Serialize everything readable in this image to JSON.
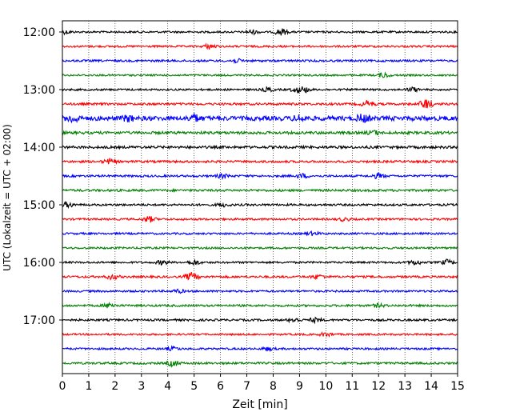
{
  "chart_data": {
    "type": "line",
    "xlabel": "Zeit  [min]",
    "ylabel": "UTC (Lokalzeit = UTC + 02:00)",
    "xlim": [
      0,
      15
    ],
    "x_ticks": [
      "0",
      "1",
      "2",
      "3",
      "4",
      "5",
      "6",
      "7",
      "8",
      "9",
      "10",
      "11",
      "12",
      "13",
      "14",
      "15"
    ],
    "y_ticks": [
      {
        "label": "12:00",
        "row": 0
      },
      {
        "label": "13:00",
        "row": 4
      },
      {
        "label": "14:00",
        "row": 8
      },
      {
        "label": "15:00",
        "row": 12
      },
      {
        "label": "16:00",
        "row": 16
      },
      {
        "label": "17:00",
        "row": 20
      }
    ],
    "grid_x": true,
    "grid_style": "dotted",
    "row_colors": [
      "#000000",
      "#ff0000",
      "#0000ff",
      "#008000"
    ],
    "rows": [
      {
        "time": "12:00",
        "amp": 1.2,
        "events": [
          [
            7.2,
            2.5
          ],
          [
            8.3,
            4
          ],
          [
            0.1,
            2
          ]
        ]
      },
      {
        "time": "12:15",
        "amp": 1.2,
        "events": [
          [
            5.6,
            3
          ]
        ]
      },
      {
        "time": "12:30",
        "amp": 1.3,
        "events": [
          [
            6.6,
            2
          ]
        ]
      },
      {
        "time": "12:45",
        "amp": 1.1,
        "events": [
          [
            12.2,
            3
          ]
        ]
      },
      {
        "time": "13:00",
        "amp": 1.2,
        "events": [
          [
            7.8,
            2.5
          ],
          [
            8.9,
            3
          ],
          [
            9.2,
            3
          ],
          [
            13.3,
            2.5
          ]
        ]
      },
      {
        "time": "13:15",
        "amp": 1.4,
        "events": [
          [
            11.6,
            4
          ],
          [
            13.8,
            6
          ]
        ]
      },
      {
        "time": "13:30",
        "amp": 2.8,
        "events": [
          [
            0.4,
            4
          ],
          [
            2.5,
            3
          ],
          [
            5.0,
            4
          ],
          [
            9.0,
            3
          ],
          [
            11.4,
            4
          ]
        ]
      },
      {
        "time": "13:45",
        "amp": 1.7,
        "events": [
          [
            11.8,
            2.5
          ]
        ]
      },
      {
        "time": "14:00",
        "amp": 1.6,
        "events": []
      },
      {
        "time": "14:15",
        "amp": 1.4,
        "events": [
          [
            1.8,
            3
          ]
        ]
      },
      {
        "time": "14:30",
        "amp": 1.3,
        "events": [
          [
            6.1,
            2.5
          ],
          [
            9.1,
            2.5
          ],
          [
            12.0,
            3
          ]
        ]
      },
      {
        "time": "14:45",
        "amp": 1.4,
        "events": []
      },
      {
        "time": "15:00",
        "amp": 1.3,
        "events": [
          [
            0.2,
            3
          ],
          [
            6.1,
            2
          ]
        ]
      },
      {
        "time": "15:15",
        "amp": 1.2,
        "events": [
          [
            3.3,
            3.5
          ],
          [
            10.7,
            2
          ]
        ]
      },
      {
        "time": "15:30",
        "amp": 1.2,
        "events": [
          [
            9.5,
            2
          ]
        ]
      },
      {
        "time": "15:45",
        "amp": 1.2,
        "events": []
      },
      {
        "time": "16:00",
        "amp": 1.2,
        "events": [
          [
            3.8,
            2.5
          ],
          [
            5.0,
            3
          ],
          [
            13.4,
            3
          ],
          [
            14.6,
            3
          ]
        ]
      },
      {
        "time": "16:15",
        "amp": 1.3,
        "events": [
          [
            1.9,
            3
          ],
          [
            4.9,
            5
          ],
          [
            9.7,
            2.5
          ]
        ]
      },
      {
        "time": "16:30",
        "amp": 1.2,
        "events": [
          [
            4.4,
            2
          ]
        ]
      },
      {
        "time": "16:45",
        "amp": 1.3,
        "events": [
          [
            1.8,
            3
          ],
          [
            12.0,
            2
          ]
        ]
      },
      {
        "time": "17:00",
        "amp": 1.3,
        "events": [
          [
            8.8,
            2.5
          ],
          [
            9.6,
            2.5
          ]
        ]
      },
      {
        "time": "17:15",
        "amp": 1.1,
        "events": [
          [
            10.0,
            2.5
          ]
        ]
      },
      {
        "time": "17:30",
        "amp": 1.2,
        "events": [
          [
            4.2,
            2
          ],
          [
            7.8,
            2
          ]
        ]
      },
      {
        "time": "17:45",
        "amp": 1.3,
        "events": [
          [
            4.2,
            3.5
          ]
        ]
      }
    ]
  }
}
